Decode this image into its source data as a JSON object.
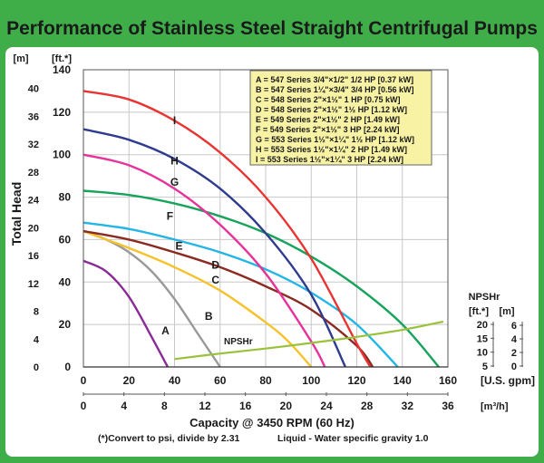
{
  "page": {
    "title": "Performance of Stainless Steel Straight Centrifugal Pumps",
    "background_color": "#3fae49",
    "panel_color": "#ffffff",
    "footnote_left": "(*)Convert to psi, divide by 2.31",
    "footnote_right": "Liquid - Water specific gravity 1.0"
  },
  "chart_data": {
    "type": "line",
    "xlabel": "Capacity @ 3450 RPM (60 Hz)",
    "ylabel": "Total Head",
    "x_axis": {
      "unit": "[U.S. gpm]",
      "range": [
        0,
        160
      ],
      "ticks": [
        0,
        20,
        40,
        60,
        80,
        100,
        120,
        140,
        160
      ]
    },
    "x2_axis": {
      "unit": "[m³/h]",
      "range": [
        0,
        36
      ],
      "ticks": [
        0,
        4,
        8,
        12,
        16,
        20,
        24,
        28,
        32,
        36
      ]
    },
    "y_axis": {
      "unit": "[ft.*]",
      "range": [
        0,
        140
      ],
      "ticks": [
        0,
        20,
        40,
        60,
        80,
        100,
        120,
        140
      ]
    },
    "y2_axis": {
      "unit": "[m]",
      "range": [
        0,
        42.67
      ],
      "ticks": [
        0,
        4,
        8,
        12,
        16,
        20,
        24,
        28,
        32,
        36,
        40
      ]
    },
    "npshr_axis": {
      "label": "NPSHr",
      "unit_ft": "[ft.*]",
      "unit_m": "[m]",
      "ft_ticks": [
        5,
        10,
        15,
        20
      ],
      "m_ticks": [
        0,
        2,
        4,
        6
      ]
    },
    "grid": true,
    "legend": {
      "placement": "top-right",
      "items": [
        "A = 547 Series 3/4\"×1/2\" 1/2 HP [0.37 kW]",
        "B = 547 Series 1¼\"×3/4\" 3/4 HP [0.56 kW]",
        "C = 548 Series 2\"×1½\" 1 HP [0.75 kW]",
        "D = 548 Series 2\"×1½\" 1½ HP [1.12 kW]",
        "E = 549 Series 2\"×1½\" 2 HP [1.49 kW]",
        "F = 549 Series 2\"×1½\" 3 HP [2.24 kW]",
        "G = 553 Series 1½\"×1¼\" 1½ HP [1.12 kW]",
        "H = 553 Series 1½\"×1¼\" 2 HP [1.49 kW]",
        "I = 553 Series 1½\"×1¼\" 3 HP [2.24 kW]"
      ]
    },
    "series": [
      {
        "name": "A",
        "color": "#8a2a96",
        "x": [
          0,
          10,
          20,
          30,
          37
        ],
        "y": [
          50,
          45,
          33,
          14,
          0
        ]
      },
      {
        "name": "B",
        "color": "#999999",
        "x": [
          0,
          10,
          20,
          30,
          40,
          50,
          60
        ],
        "y": [
          64,
          60,
          54,
          45,
          32,
          16,
          0
        ]
      },
      {
        "name": "C",
        "color": "#f5c22c",
        "x": [
          0,
          20,
          40,
          60,
          80,
          90,
          100
        ],
        "y": [
          64,
          56,
          47,
          36,
          21,
          12,
          0
        ]
      },
      {
        "name": "D",
        "color": "#8b2a20",
        "x": [
          0,
          20,
          40,
          60,
          80,
          100,
          120,
          127
        ],
        "y": [
          64,
          60,
          54,
          47,
          38,
          27,
          10,
          0
        ]
      },
      {
        "name": "E",
        "color": "#23b5e6",
        "x": [
          0,
          20,
          40,
          60,
          80,
          100,
          120,
          138
        ],
        "y": [
          68,
          65,
          60,
          54,
          46,
          35,
          20,
          0
        ]
      },
      {
        "name": "F",
        "color": "#16a35a",
        "x": [
          0,
          20,
          40,
          60,
          80,
          100,
          120,
          140,
          156
        ],
        "y": [
          83,
          81,
          77,
          71,
          63,
          52,
          38,
          20,
          0
        ]
      },
      {
        "name": "G",
        "color": "#e6329a",
        "x": [
          0,
          20,
          40,
          60,
          80,
          100,
          106
        ],
        "y": [
          100,
          95,
          84,
          67,
          44,
          12,
          0
        ]
      },
      {
        "name": "H",
        "color": "#2e3b8f",
        "x": [
          0,
          20,
          40,
          60,
          80,
          100,
          115
        ],
        "y": [
          112,
          107,
          98,
          84,
          63,
          34,
          0
        ]
      },
      {
        "name": "I",
        "color": "#e83432",
        "x": [
          0,
          20,
          40,
          60,
          80,
          100,
          120,
          126
        ],
        "y": [
          130,
          126,
          116,
          101,
          80,
          51,
          11,
          0
        ]
      },
      {
        "name": "NPSHr",
        "color": "#99c23a",
        "x": [
          40,
          60,
          80,
          100,
          120,
          140,
          158
        ],
        "y": [
          7.5,
          9.5,
          11.3,
          13.3,
          15.5,
          18.0,
          21.0
        ]
      }
    ]
  }
}
